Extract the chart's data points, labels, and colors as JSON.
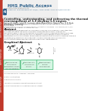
{
  "title_line1": "Controlling, understanding, and redirecting the thermal",
  "title_line2": "rearrangement of 3,3-dicyano-1,5-enynes",
  "header_text": "HHS Public Access",
  "journal_line1": "Author manuscript; available in PMC 2017 August 25.",
  "published_text": "Published in final edited form as:",
  "citation_text": "J Am Chem Soc. 2016 November 23; 138(47): 15461-15466. doi:10.1021/jacs.6b10582.",
  "authors_line1": "Samuel G. Smith, Jared M. Cosimano, Abdulhamid White, Roberto Rev. D. B. Bock,",
  "authors_line2": "Alexander J. Grenning",
  "affil1": "aUniversity of Florida, Department of Chemistry, P.O. Box 117200, Gainesville, Florida 32611,",
  "affil2": "United States",
  "affil3": "bDepartment of Chemistry and Biochemistry, University of California - Los Angeles (UCLA) 607",
  "affil4": "C. Tang Drive Los Angeles, CA 90095, USA 310",
  "abstract_title": "Abstract",
  "abstract_lines": [
    "The thermal [3,3]-rearrangement of 3,3-dicyano-1,5-enynes is a valuable allyl vinyl ether-type",
    "surrogate cyclization that forms 3,3-dicyano-cyclopentanone products. However, the",
    "mechanistic basis for why these reactions consistently yield cyclopentanone-type products was",
    "not well understood. Here we use carefully selected control substrates to explore how the",
    "temperature controls the outcome. Experiments demonstrate that the reaction proceeds through a",
    "concerted [3,3]-sigmatropic rearrangement. This work describes concise mechanistic",
    "controlling and thereby describe how to accomplish final rearrangements."
  ],
  "graphical_title": "Graphical Abstract",
  "footnotes": [
    "Correspondence to: Alexander J. Grenning.",
    "aAuthor contributions",
    "Supporting Information",
    "The authors declare no competing financial interest.",
    "bThe authors declare no competing financial interest."
  ],
  "sidebar_color": "#c0392b",
  "sidebar_label": "Author Manuscript",
  "header_blue": "#2c5f8a",
  "nih_logo_color": "#2c5f8a",
  "title_color": "#1a1a1a",
  "text_color": "#333333",
  "light_text": "#555555",
  "link_color": "#1a5276",
  "check_green": "#27ae60",
  "box_green_bg": "#d5f5e3",
  "box_green_border": "#27ae60",
  "line_color": "#aaaaaa",
  "bg_color": "#ffffff"
}
